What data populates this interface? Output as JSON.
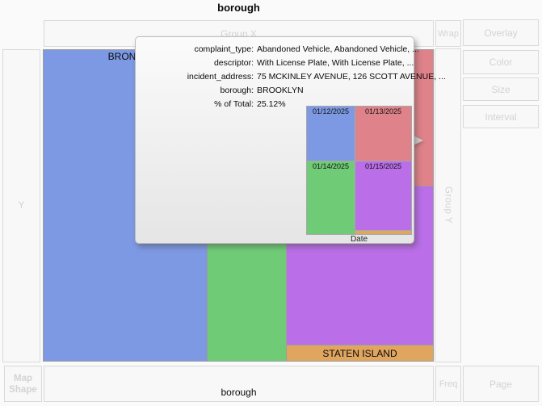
{
  "title": "borough",
  "x_axis": {
    "label": "borough"
  },
  "drop_zones": {
    "group_x": "Group X",
    "wrap": "Wrap",
    "overlay": "Overlay",
    "color": "Color",
    "size": "Size",
    "interval": "Interval",
    "group_y": "Group Y",
    "y": "Y",
    "map_shape": "Map Shape",
    "freq": "Freq",
    "page": "Page"
  },
  "treemap": {
    "cells": [
      {
        "name": "bronx",
        "label": "BRONX",
        "color": "#7d99e3"
      },
      {
        "name": "brooklyn",
        "label": "",
        "color": "#70cb77"
      },
      {
        "name": "manhattan",
        "label": "",
        "color": "#df8289"
      },
      {
        "name": "queens",
        "label": "",
        "color": "#ba6ee8"
      },
      {
        "name": "staten-island",
        "label": "STATEN ISLAND",
        "color": "#e0a55f"
      }
    ]
  },
  "tooltip": {
    "rows": [
      {
        "key": "complaint_type:",
        "value": "Abandoned Vehicle, Abandoned Vehicle, ..."
      },
      {
        "key": "descriptor:",
        "value": "With License Plate, With License Plate, ..."
      },
      {
        "key": "incident_address:",
        "value": "75 MCKINLEY AVENUE, 126 SCOTT AVENUE, ..."
      },
      {
        "key": "borough:",
        "value": "BROOKLYN"
      },
      {
        "key": "% of Total:",
        "value": "25.12%"
      }
    ],
    "mini_chart": {
      "axis_label": "Date",
      "cells": [
        {
          "label": "01/12/2025",
          "color": "#7d99e3"
        },
        {
          "label": "01/13/2025",
          "color": "#df8289"
        },
        {
          "label": "01/14/2025",
          "color": "#70cb77"
        },
        {
          "label": "01/15/2025",
          "color": "#ba6ee8"
        },
        {
          "label": "",
          "color": "#e0a55f"
        }
      ]
    }
  },
  "chart_data": {
    "type": "treemap",
    "group_by": "borough",
    "visible_labels": [
      "BRONX",
      "STATEN ISLAND"
    ],
    "hovered_cell": {
      "borough": "BROOKLYN",
      "percent_of_total": 25.12,
      "complaint_type": "Abandoned Vehicle, Abandoned Vehicle, ...",
      "descriptor": "With License Plate, With License Plate, ...",
      "incident_address": "75 MCKINLEY AVENUE, 126 SCOTT AVENUE, ..."
    },
    "tooltip_submap": {
      "type": "treemap",
      "dimension": "Date",
      "categories": [
        "01/12/2025",
        "01/13/2025",
        "01/14/2025",
        "01/15/2025"
      ]
    }
  }
}
